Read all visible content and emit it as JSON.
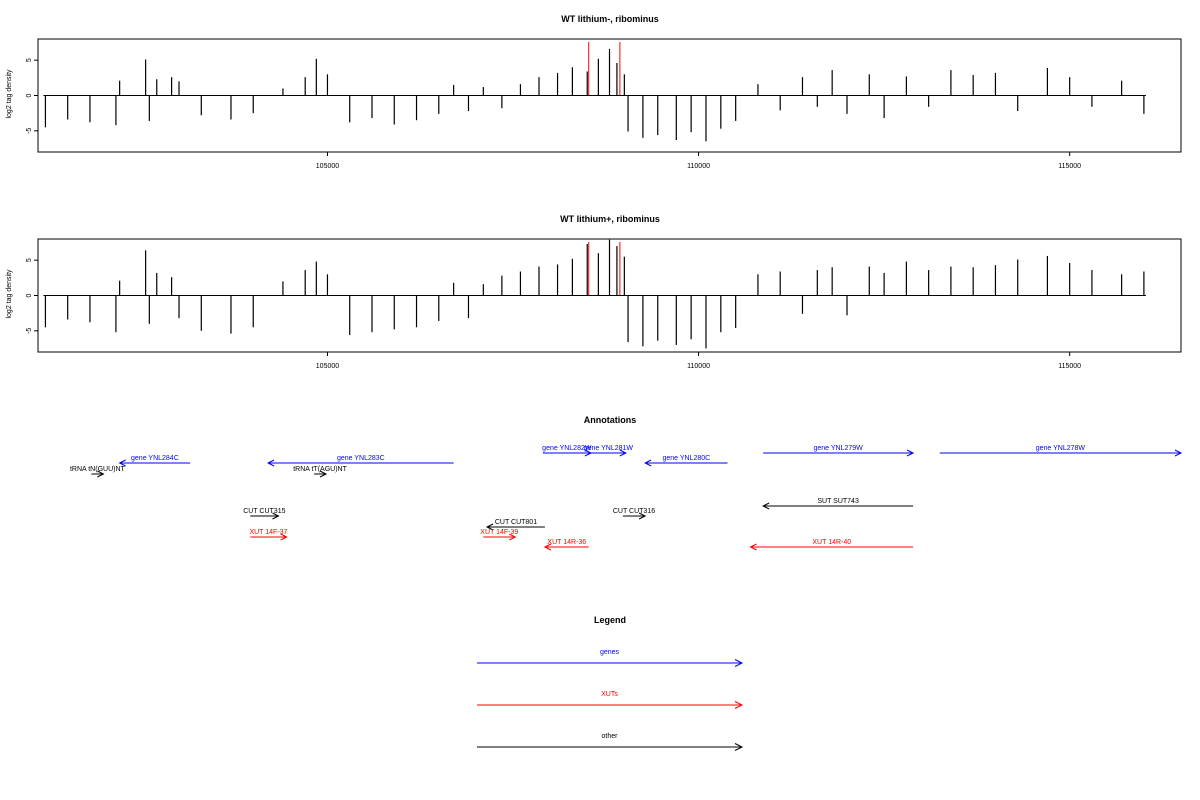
{
  "chart_data": [
    {
      "type": "bar",
      "title": "WT lithium-, ribominus",
      "xlabel": "",
      "ylabel": "log2 tag density",
      "xlim": [
        101100,
        116500
      ],
      "ylim": [
        -8,
        8
      ],
      "x_ticks": [
        105000,
        110000,
        115000
      ],
      "x_tick_labels": [
        "105000",
        "110000",
        "115000"
      ],
      "y_ticks": [
        -5,
        0,
        5
      ],
      "y_tick_labels": [
        "-5",
        "0",
        "5"
      ],
      "marker_positions": [
        108520,
        108940
      ],
      "marker_color": "#ff0000",
      "series": [
        {
          "x": 101200,
          "y": -4.5
        },
        {
          "x": 101500,
          "y": -3.4
        },
        {
          "x": 101800,
          "y": -3.8
        },
        {
          "x": 102150,
          "y": -4.2
        },
        {
          "x": 102200,
          "y": 2.1
        },
        {
          "x": 102550,
          "y": 5.1
        },
        {
          "x": 102600,
          "y": -3.6
        },
        {
          "x": 102700,
          "y": 2.3
        },
        {
          "x": 102900,
          "y": 2.6
        },
        {
          "x": 103000,
          "y": 2.0
        },
        {
          "x": 103300,
          "y": -2.8
        },
        {
          "x": 103700,
          "y": -3.4
        },
        {
          "x": 104000,
          "y": -2.5
        },
        {
          "x": 104400,
          "y": 1.0
        },
        {
          "x": 104700,
          "y": 2.6
        },
        {
          "x": 104850,
          "y": 5.2
        },
        {
          "x": 105000,
          "y": 3.0
        },
        {
          "x": 105300,
          "y": -3.8
        },
        {
          "x": 105600,
          "y": -3.2
        },
        {
          "x": 105900,
          "y": -4.1
        },
        {
          "x": 106200,
          "y": -3.5
        },
        {
          "x": 106500,
          "y": -2.6
        },
        {
          "x": 106700,
          "y": 1.5
        },
        {
          "x": 106900,
          "y": -2.2
        },
        {
          "x": 107100,
          "y": 1.2
        },
        {
          "x": 107350,
          "y": -1.8
        },
        {
          "x": 107600,
          "y": 1.6
        },
        {
          "x": 107850,
          "y": 2.6
        },
        {
          "x": 108100,
          "y": 3.2
        },
        {
          "x": 108300,
          "y": 4.0
        },
        {
          "x": 108500,
          "y": 3.4
        },
        {
          "x": 108650,
          "y": 5.2
        },
        {
          "x": 108800,
          "y": 6.6
        },
        {
          "x": 108900,
          "y": 4.6
        },
        {
          "x": 109000,
          "y": 3.0
        },
        {
          "x": 109050,
          "y": -5.1
        },
        {
          "x": 109250,
          "y": -6.0
        },
        {
          "x": 109450,
          "y": -5.6
        },
        {
          "x": 109700,
          "y": -6.3
        },
        {
          "x": 109900,
          "y": -5.2
        },
        {
          "x": 110100,
          "y": -6.5
        },
        {
          "x": 110300,
          "y": -4.7
        },
        {
          "x": 110500,
          "y": -3.6
        },
        {
          "x": 110800,
          "y": 1.6
        },
        {
          "x": 111100,
          "y": -2.1
        },
        {
          "x": 111400,
          "y": 2.6
        },
        {
          "x": 111600,
          "y": -1.6
        },
        {
          "x": 111800,
          "y": 3.6
        },
        {
          "x": 112000,
          "y": -2.6
        },
        {
          "x": 112300,
          "y": 3.0
        },
        {
          "x": 112500,
          "y": -3.2
        },
        {
          "x": 112800,
          "y": 2.7
        },
        {
          "x": 113100,
          "y": -1.6
        },
        {
          "x": 113400,
          "y": 3.6
        },
        {
          "x": 113700,
          "y": 2.9
        },
        {
          "x": 114000,
          "y": 3.2
        },
        {
          "x": 114300,
          "y": -2.2
        },
        {
          "x": 114700,
          "y": 3.9
        },
        {
          "x": 115000,
          "y": 2.6
        },
        {
          "x": 115300,
          "y": -1.6
        },
        {
          "x": 115700,
          "y": 2.1
        },
        {
          "x": 116000,
          "y": -2.6
        }
      ]
    },
    {
      "type": "bar",
      "title": "WT lithium+, ribominus",
      "xlabel": "",
      "ylabel": "log2 tag density",
      "xlim": [
        101100,
        116500
      ],
      "ylim": [
        -8,
        8
      ],
      "x_ticks": [
        105000,
        110000,
        115000
      ],
      "x_tick_labels": [
        "105000",
        "110000",
        "115000"
      ],
      "y_ticks": [
        -5,
        0,
        5
      ],
      "y_tick_labels": [
        "-5",
        "0",
        "5"
      ],
      "marker_positions": [
        108520,
        108940
      ],
      "marker_color": "#ff0000",
      "series": [
        {
          "x": 101200,
          "y": -4.5
        },
        {
          "x": 101500,
          "y": -3.4
        },
        {
          "x": 101800,
          "y": -3.8
        },
        {
          "x": 102150,
          "y": -5.2
        },
        {
          "x": 102200,
          "y": 2.1
        },
        {
          "x": 102550,
          "y": 6.4
        },
        {
          "x": 102600,
          "y": -4.0
        },
        {
          "x": 102700,
          "y": 3.2
        },
        {
          "x": 102900,
          "y": 2.6
        },
        {
          "x": 103000,
          "y": -3.2
        },
        {
          "x": 103300,
          "y": -5.0
        },
        {
          "x": 103700,
          "y": -5.4
        },
        {
          "x": 104000,
          "y": -4.5
        },
        {
          "x": 104400,
          "y": 2.0
        },
        {
          "x": 104700,
          "y": 3.6
        },
        {
          "x": 104850,
          "y": 4.8
        },
        {
          "x": 105000,
          "y": 3.0
        },
        {
          "x": 105300,
          "y": -5.6
        },
        {
          "x": 105600,
          "y": -5.2
        },
        {
          "x": 105900,
          "y": -4.8
        },
        {
          "x": 106200,
          "y": -4.5
        },
        {
          "x": 106500,
          "y": -3.6
        },
        {
          "x": 106700,
          "y": 1.8
        },
        {
          "x": 106900,
          "y": -3.2
        },
        {
          "x": 107100,
          "y": 1.6
        },
        {
          "x": 107350,
          "y": 2.8
        },
        {
          "x": 107600,
          "y": 3.4
        },
        {
          "x": 107850,
          "y": 4.1
        },
        {
          "x": 108100,
          "y": 4.4
        },
        {
          "x": 108300,
          "y": 5.2
        },
        {
          "x": 108500,
          "y": 7.3
        },
        {
          "x": 108650,
          "y": 6.0
        },
        {
          "x": 108800,
          "y": 7.9
        },
        {
          "x": 108900,
          "y": 7.0
        },
        {
          "x": 109000,
          "y": 5.5
        },
        {
          "x": 109050,
          "y": -6.6
        },
        {
          "x": 109250,
          "y": -7.2
        },
        {
          "x": 109450,
          "y": -6.4
        },
        {
          "x": 109700,
          "y": -7.0
        },
        {
          "x": 109900,
          "y": -6.2
        },
        {
          "x": 110100,
          "y": -7.5
        },
        {
          "x": 110300,
          "y": -5.2
        },
        {
          "x": 110500,
          "y": -4.6
        },
        {
          "x": 110800,
          "y": 3.0
        },
        {
          "x": 111100,
          "y": 3.4
        },
        {
          "x": 111400,
          "y": -2.6
        },
        {
          "x": 111600,
          "y": 3.6
        },
        {
          "x": 111800,
          "y": 4.0
        },
        {
          "x": 112000,
          "y": -2.8
        },
        {
          "x": 112300,
          "y": 4.1
        },
        {
          "x": 112500,
          "y": 3.2
        },
        {
          "x": 112800,
          "y": 4.8
        },
        {
          "x": 113100,
          "y": 3.6
        },
        {
          "x": 113400,
          "y": 4.1
        },
        {
          "x": 113700,
          "y": 4.0
        },
        {
          "x": 114000,
          "y": 4.3
        },
        {
          "x": 114300,
          "y": 5.1
        },
        {
          "x": 114700,
          "y": 5.6
        },
        {
          "x": 115000,
          "y": 4.6
        },
        {
          "x": 115300,
          "y": 3.6
        },
        {
          "x": 115700,
          "y": 3.0
        },
        {
          "x": 116000,
          "y": 3.4
        }
      ]
    }
  ],
  "annotations": {
    "title": "Annotations",
    "xlim": [
      101100,
      116500
    ],
    "features": [
      {
        "label": "gene YNL284C",
        "start": 102200,
        "end": 103150,
        "strand": "-",
        "color": "#0000ff",
        "level": 2
      },
      {
        "label": "tRNA tN(GUU)NT",
        "start": 101850,
        "end": 101950,
        "strand": "+",
        "color": "#000000",
        "level": 1
      },
      {
        "label": "gene YNL283C",
        "start": 104200,
        "end": 106700,
        "strand": "-",
        "color": "#0000ff",
        "level": 2
      },
      {
        "label": "tRNA tT(AGU)NT",
        "start": 104850,
        "end": 104950,
        "strand": "+",
        "color": "#000000",
        "level": 1
      },
      {
        "label": "gene YNL282W",
        "start": 107900,
        "end": 108550,
        "strand": "+",
        "color": "#0000ff",
        "level": 3
      },
      {
        "label": "gene YNL281W",
        "start": 108550,
        "end": 109020,
        "strand": "+",
        "color": "#0000ff",
        "level": 3
      },
      {
        "label": "gene YNL280C",
        "start": 109280,
        "end": 110390,
        "strand": "-",
        "color": "#0000ff",
        "level": 2
      },
      {
        "label": "gene YNL279W",
        "start": 110870,
        "end": 112890,
        "strand": "+",
        "color": "#0000ff",
        "level": 3
      },
      {
        "label": "gene YNL278W",
        "start": 113250,
        "end": 116500,
        "strand": "+",
        "color": "#0000ff",
        "level": 3
      },
      {
        "label": "SUT SUT743",
        "start": 110870,
        "end": 112890,
        "strand": "-",
        "color": "#000000",
        "level": 4
      },
      {
        "label": "CUT CUT315",
        "start": 103960,
        "end": 104340,
        "strand": "+",
        "color": "#000000",
        "level": 5
      },
      {
        "label": "CUT CUT801",
        "start": 107150,
        "end": 107930,
        "strand": "-",
        "color": "#000000",
        "level": 6
      },
      {
        "label": "CUT CUT316",
        "start": 108980,
        "end": 109280,
        "strand": "+",
        "color": "#000000",
        "level": 5
      },
      {
        "label": "XUT 14F-37",
        "start": 103960,
        "end": 104450,
        "strand": "+",
        "color": "#ff0000",
        "level": 7
      },
      {
        "label": "XUT 14F-39",
        "start": 107100,
        "end": 107530,
        "strand": "+",
        "color": "#ff0000",
        "level": 7
      },
      {
        "label": "XUT 14R-36",
        "start": 107930,
        "end": 108520,
        "strand": "-",
        "color": "#ff0000",
        "level": 8
      },
      {
        "label": "XUT 14R-40",
        "start": 110700,
        "end": 112890,
        "strand": "-",
        "color": "#ff0000",
        "level": 8
      }
    ]
  },
  "legend": {
    "title": "Legend",
    "entries": [
      {
        "label": "genes",
        "color": "#0000ff"
      },
      {
        "label": "XUTs",
        "color": "#ff0000"
      },
      {
        "label": "other",
        "color": "#000000"
      }
    ]
  }
}
